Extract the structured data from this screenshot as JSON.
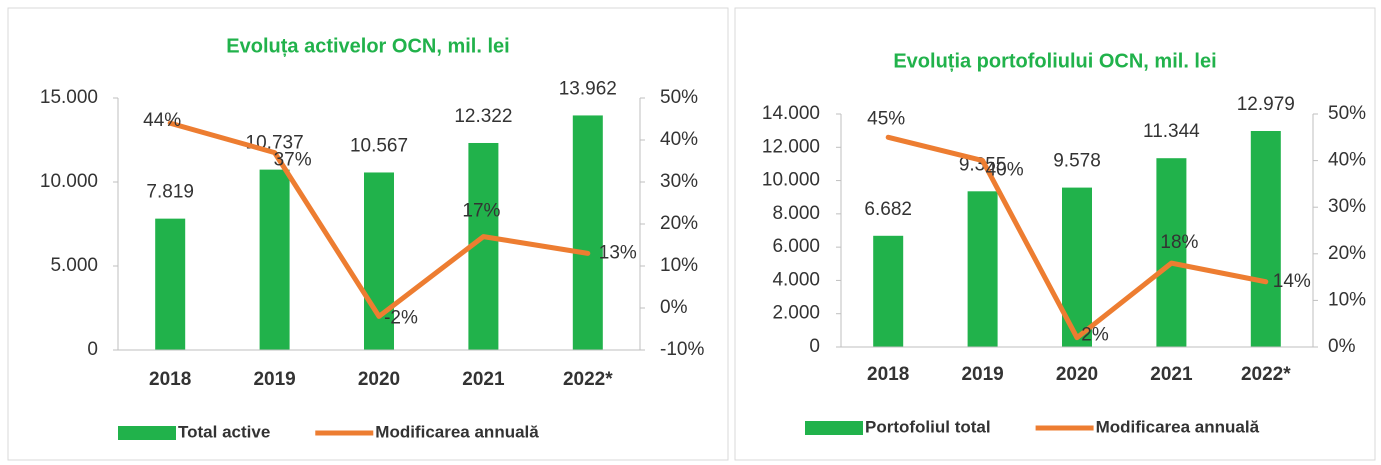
{
  "chart_data": [
    {
      "type": "bar",
      "title": "Evoluța activelor OCN, mil. lei",
      "categories": [
        "2018",
        "2019",
        "2020",
        "2021",
        "2022*"
      ],
      "series": [
        {
          "name": "Total active",
          "color": "#21b24b",
          "values": [
            7819,
            10737,
            10567,
            12322,
            13962
          ],
          "value_labels": [
            "7.819",
            "10.737",
            "10.567",
            "12.322",
            "13.962"
          ]
        },
        {
          "name": "Modificarea annuală",
          "type": "line",
          "axis": "y2",
          "color": "#ed7d31",
          "values": [
            44,
            37,
            -2,
            17,
            13
          ],
          "value_labels": [
            "44%",
            "37%",
            "-2%",
            "17%",
            "13%"
          ]
        }
      ],
      "ylim": [
        0,
        15000
      ],
      "yticks": [
        0,
        {
          "value": 5000,
          "label": "5.000"
        },
        {
          "value": 10000,
          "label": "10.000"
        },
        {
          "value": 15000,
          "label": "15.000"
        }
      ],
      "y2lim": [
        -10,
        50
      ],
      "y2ticks": [
        {
          "value": -10,
          "label": "-10%"
        },
        {
          "value": 0,
          "label": "0%"
        },
        {
          "value": 10,
          "label": "10%"
        },
        {
          "value": 20,
          "label": "20%"
        },
        {
          "value": 30,
          "label": "30%"
        },
        {
          "value": 40,
          "label": "40%"
        },
        {
          "value": 50,
          "label": "50%"
        }
      ],
      "legend": "bottom"
    },
    {
      "type": "bar",
      "title": "Evoluția portofoliului OCN, mil. lei",
      "categories": [
        "2018",
        "2019",
        "2020",
        "2021",
        "2022*"
      ],
      "series": [
        {
          "name": "Portofoliul total",
          "color": "#21b24b",
          "values": [
            6682,
            9355,
            9578,
            11344,
            12979
          ],
          "value_labels": [
            "6.682",
            "9.355",
            "9.578",
            "11.344",
            "12.979"
          ]
        },
        {
          "name": "Modificarea annuală",
          "type": "line",
          "axis": "y2",
          "color": "#ed7d31",
          "values": [
            45,
            40,
            2,
            18,
            14
          ],
          "value_labels": [
            "45%",
            "40%",
            "2%",
            "18%",
            "14%"
          ]
        }
      ],
      "ylim": [
        0,
        14000
      ],
      "yticks": [
        0,
        {
          "value": 2000,
          "label": "2.000"
        },
        {
          "value": 4000,
          "label": "4.000"
        },
        {
          "value": 6000,
          "label": "6.000"
        },
        {
          "value": 8000,
          "label": "8.000"
        },
        {
          "value": 10000,
          "label": "10.000"
        },
        {
          "value": 12000,
          "label": "12.000"
        },
        {
          "value": 14000,
          "label": "14.000"
        }
      ],
      "y2lim": [
        0,
        50
      ],
      "y2ticks": [
        {
          "value": 0,
          "label": "0%"
        },
        {
          "value": 10,
          "label": "10%"
        },
        {
          "value": 20,
          "label": "20%"
        },
        {
          "value": 30,
          "label": "30%"
        },
        {
          "value": 40,
          "label": "40%"
        },
        {
          "value": 50,
          "label": "50%"
        }
      ],
      "legend": "bottom"
    }
  ]
}
